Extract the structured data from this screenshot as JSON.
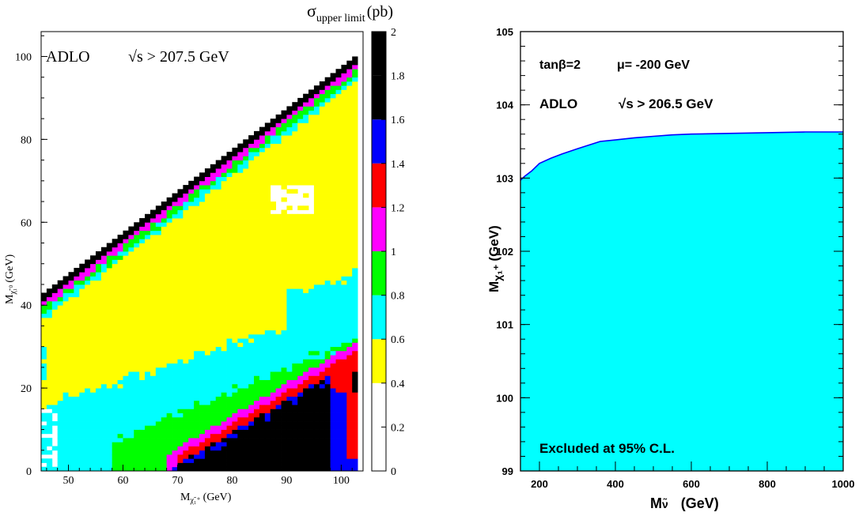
{
  "chart_data": [
    {
      "type": "heatmap",
      "title": "σupper limit (pb)",
      "title_main": "σ",
      "title_sub": "upper limit",
      "title_unit": "(pb)",
      "annotation_experiment": "ADLO",
      "annotation_energy": "√s > 207.5 GeV",
      "xlabel": "Mχ̃₁⁺ (GeV)",
      "xlabel_main": "M",
      "xlabel_sub": "χ̃₁⁺",
      "xlabel_unit": "(GeV)",
      "ylabel": "Mχ̃₁⁰ (GeV)",
      "ylabel_main": "M",
      "ylabel_sub": "χ̃₁⁰",
      "ylabel_unit": "(GeV)",
      "xlim": [
        45,
        104
      ],
      "ylim": [
        0,
        106
      ],
      "xticks": [
        50,
        60,
        70,
        80,
        90,
        100
      ],
      "yticks": [
        0,
        20,
        40,
        60,
        80,
        100
      ],
      "colorbar": {
        "range": [
          0,
          2
        ],
        "ticks": [
          "0",
          "0.2",
          "0.4",
          "0.6",
          "0.8",
          "1",
          "1.2",
          "1.4",
          "1.6",
          "1.8",
          "2"
        ],
        "colors": [
          "#ffffff",
          "#ffffff",
          "#ffff00",
          "#00ffff",
          "#00ff00",
          "#ff00ff",
          "#ff0000",
          "#0000ff",
          "#000000",
          "#000000"
        ]
      },
      "regions": [
        {
          "range": "black band along diagonal",
          "color": "#000000",
          "value": 1.9
        },
        {
          "range": "magenta",
          "color": "#ff00ff",
          "value": 1.1
        },
        {
          "range": "green",
          "color": "#00ff00",
          "value": 0.7
        },
        {
          "range": "cyan",
          "color": "#00ffff",
          "value": 0.5
        },
        {
          "range": "yellow",
          "color": "#ffff00",
          "value": 0.35
        },
        {
          "range": "white",
          "color": "#ffffff",
          "value": 0.1
        }
      ]
    },
    {
      "type": "area",
      "annotation_params_1": "tanβ=2",
      "annotation_params_2": "μ= -200 GeV",
      "annotation_experiment": "ADLO",
      "annotation_energy": "√s > 206.5 GeV",
      "annotation_excluded": "Excluded at 95% C.L.",
      "xlabel": "Mν̃ (GeV)",
      "xlabel_main": "M",
      "xlabel_sub": "ν̃",
      "xlabel_unit": "(GeV)",
      "ylabel": "Mχ₁⁺ (GeV)",
      "ylabel_main": "M",
      "ylabel_sub": "χ₁⁺",
      "ylabel_unit": "(GeV)",
      "xlim": [
        150,
        1000
      ],
      "ylim": [
        99,
        105
      ],
      "xticks": [
        "200",
        "400",
        "600",
        "800",
        "1000"
      ],
      "yticks": [
        "99",
        "100",
        "101",
        "102",
        "103",
        "104",
        "105"
      ],
      "fill_color": "#00ffff",
      "line_color": "#0000ff",
      "series": [
        {
          "x": [
            150,
            160,
            180,
            200,
            230,
            260,
            300,
            330,
            360,
            400,
            450,
            500,
            550,
            600,
            700,
            800,
            900,
            1000
          ],
          "y": [
            102.97,
            103.02,
            103.1,
            103.2,
            103.27,
            103.33,
            103.4,
            103.45,
            103.5,
            103.52,
            103.55,
            103.57,
            103.59,
            103.6,
            103.61,
            103.62,
            103.63,
            103.63
          ]
        }
      ]
    }
  ]
}
